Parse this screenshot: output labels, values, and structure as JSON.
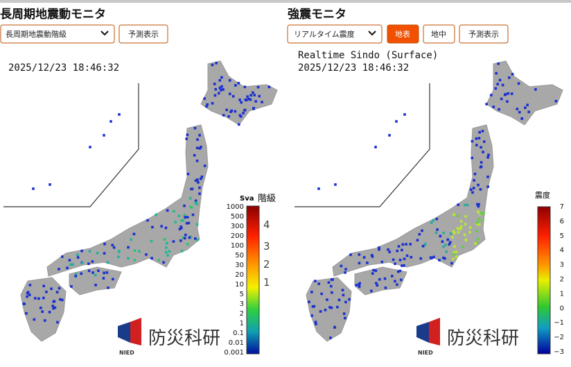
{
  "left_panel": {
    "title": "長周期地震動モニタ",
    "dropdown": "長周期地震動階級",
    "button": "予測表示",
    "timestamp": "2025/12/23 18:46:32",
    "scale": {
      "unit_label": "Sva",
      "class_label": "階級",
      "ticks": [
        "1000",
        "500",
        "300",
        "200",
        "100",
        "50",
        "30",
        "20",
        "10",
        "5",
        "3",
        "2",
        "1",
        "0.1",
        "0.01",
        "0.001"
      ],
      "classes": [
        "4",
        "3",
        "2",
        "1"
      ]
    },
    "logo": {
      "text": "防災科研",
      "sub": "NIED"
    }
  },
  "right_panel": {
    "title": "強震モニタ",
    "dropdown": "リアルタイム震度",
    "buttons": [
      "地表",
      "地中",
      "予測表示"
    ],
    "map_label": "Realtime Sindo (Surface)",
    "timestamp": "2025/12/23 18:46:32",
    "scale": {
      "label": "震度",
      "ticks": [
        "7",
        "6",
        "5",
        "4",
        "3",
        "2",
        "1",
        "0",
        "−1",
        "−2",
        "−3"
      ]
    },
    "logo": {
      "text": "防災科研",
      "sub": "NIED"
    }
  }
}
